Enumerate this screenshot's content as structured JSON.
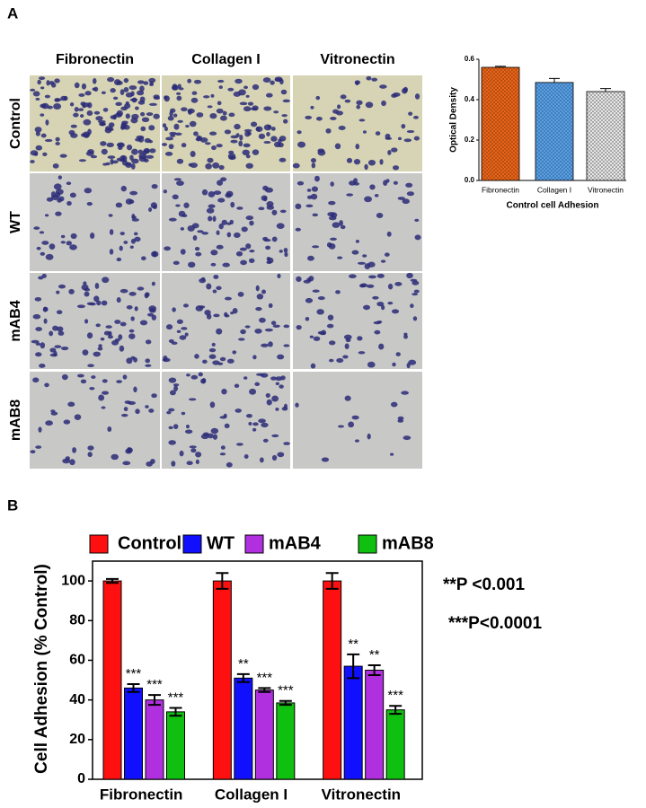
{
  "panel_labels": [
    "A",
    "B"
  ],
  "micrograph": {
    "columns": [
      "Fibronectin",
      "Collagen I",
      "Vitronectin"
    ],
    "rows": [
      "Control",
      "WT",
      "mAB4",
      "mAB8"
    ]
  },
  "chart_data": [
    {
      "type": "bar",
      "ylabel": "Optical Density",
      "xlabel": "Control cell Adhesion",
      "categories": [
        "Fibronectin",
        "Collagen I",
        "Vitronectin"
      ],
      "values": [
        0.56,
        0.485,
        0.44
      ],
      "errors": [
        0.005,
        0.02,
        0.015
      ],
      "colors": [
        "#e8641a",
        "#5aa0e0",
        "#c8c8c8"
      ],
      "ylim": [
        0,
        0.6
      ],
      "yticks": [
        {
          "value": 0,
          "label": "0.0"
        },
        {
          "value": 0.2,
          "label": "0.2"
        },
        {
          "value": 0.4,
          "label": "0.4"
        },
        {
          "value": 0.6,
          "label": "0.6"
        }
      ]
    },
    {
      "type": "bar",
      "ylabel": "Cell Adhesion (% Control)",
      "categories": [
        "Fibronectin",
        "Collagen I",
        "Vitronectin"
      ],
      "series": [
        {
          "name": "Control",
          "color": "#ff1010",
          "values": [
            100,
            100,
            100
          ],
          "errors": [
            1,
            4,
            4
          ],
          "labels": [
            null,
            null,
            null
          ]
        },
        {
          "name": "WT",
          "color": "#1010ff",
          "values": [
            46,
            51,
            57
          ],
          "errors": [
            2,
            2,
            6
          ],
          "labels": [
            "***",
            "**",
            "**"
          ]
        },
        {
          "name": "mAB4",
          "color": "#b030e0",
          "values": [
            40,
            45,
            55
          ],
          "errors": [
            2.5,
            1,
            2.5
          ],
          "labels": [
            "***",
            "***",
            "**"
          ]
        },
        {
          "name": "mAB8",
          "color": "#10c010",
          "values": [
            34,
            38.5,
            35
          ],
          "errors": [
            2,
            1,
            2
          ],
          "labels": [
            "***",
            "***",
            "***"
          ]
        }
      ],
      "ylim": [
        0,
        110
      ],
      "yticks": [
        0,
        20,
        40,
        60,
        80,
        100
      ],
      "annotations": [
        "**P <0.001",
        "***P<0.0001"
      ]
    }
  ]
}
